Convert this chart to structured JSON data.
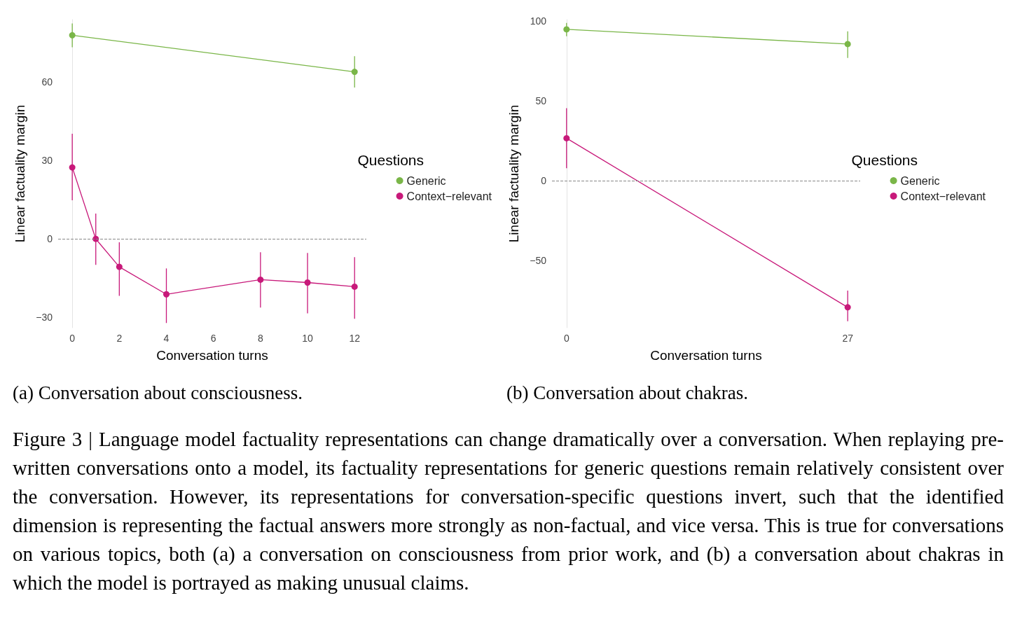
{
  "chart_data": [
    {
      "type": "line",
      "xlabel": "Conversation turns",
      "ylabel": "Linear factuality margin",
      "legend_title": "Questions",
      "legend": "right",
      "grid": false,
      "marker": "circle",
      "xlim": [
        -0.6,
        12.5
      ],
      "xticks": [
        0,
        2,
        4,
        6,
        8,
        10,
        12
      ],
      "ylim": [
        -34,
        84
      ],
      "yticks": [
        -30,
        0,
        30,
        60
      ],
      "ref_lines": [
        {
          "axis": "y",
          "value": 0,
          "label": null,
          "color": "#888888",
          "line_style": "dashed"
        }
      ],
      "series": [
        {
          "name": "Generic",
          "color": "#7ab648",
          "x": [
            0,
            12
          ],
          "values": [
            78,
            64
          ],
          "errors": [
            [
              73.4,
              82.5
            ],
            [
              58,
              70
            ]
          ]
        },
        {
          "name": "Context−relevant",
          "color": "#c8197a",
          "x": [
            0,
            1,
            2,
            4,
            8,
            10,
            12
          ],
          "values": [
            27.4,
            0,
            -10.7,
            -21.2,
            -15.6,
            -16.7,
            -18.3
          ],
          "errors": [
            [
              14.8,
              40.3
            ],
            [
              -9.9,
              9.7
            ],
            [
              -21.8,
              -1.3
            ],
            [
              -32.2,
              -11.3
            ],
            [
              -26.3,
              -5.1
            ],
            [
              -28.5,
              -5.4
            ],
            [
              -30.6,
              -7
            ]
          ]
        }
      ],
      "annotations": [
        "(a) Conversation about consciousness."
      ]
    },
    {
      "type": "line",
      "xlabel": "Conversation turns",
      "ylabel": "Linear factuality margin",
      "legend_title": "Questions",
      "legend": "right",
      "grid": false,
      "marker": "circle",
      "xlim": [
        -1.4,
        28.2
      ],
      "xticks": [
        0,
        27
      ],
      "ylim": [
        -92,
        101
      ],
      "yticks": [
        -50,
        0,
        50,
        100
      ],
      "ref_lines": [
        {
          "axis": "y",
          "value": 0,
          "label": null,
          "color": "#888888",
          "line_style": "dashed"
        }
      ],
      "series": [
        {
          "name": "Generic",
          "color": "#7ab648",
          "x": [
            0,
            27
          ],
          "values": [
            94.9,
            85.7
          ],
          "errors": [
            [
              90.6,
              98.9
            ],
            [
              77,
              93.6
            ]
          ]
        },
        {
          "name": "Context−relevant",
          "color": "#c8197a",
          "x": [
            0,
            27
          ],
          "values": [
            26.7,
            -79.2
          ],
          "errors": [
            [
              7.9,
              45.5
            ],
            [
              -87.9,
              -68.7
            ]
          ]
        }
      ],
      "annotations": [
        "(b) Conversation about chakras.",
        "Figure 3 | Language model factuality representations can change dramatically over a conversation. When replaying pre-written conversations onto a model, its factuality representations for generic questions remain relatively consistent over the conversation. However, its representations for conversation-specific questions invert, such that the identified dimension is representing the factual answers more strongly as non-factual, and vice versa. This is true for conversations on various topics, both (a) a conversation on consciousness from prior work, and (b) a conversation about chakras in which the model is portrayed as making unusual claims."
      ]
    }
  ]
}
